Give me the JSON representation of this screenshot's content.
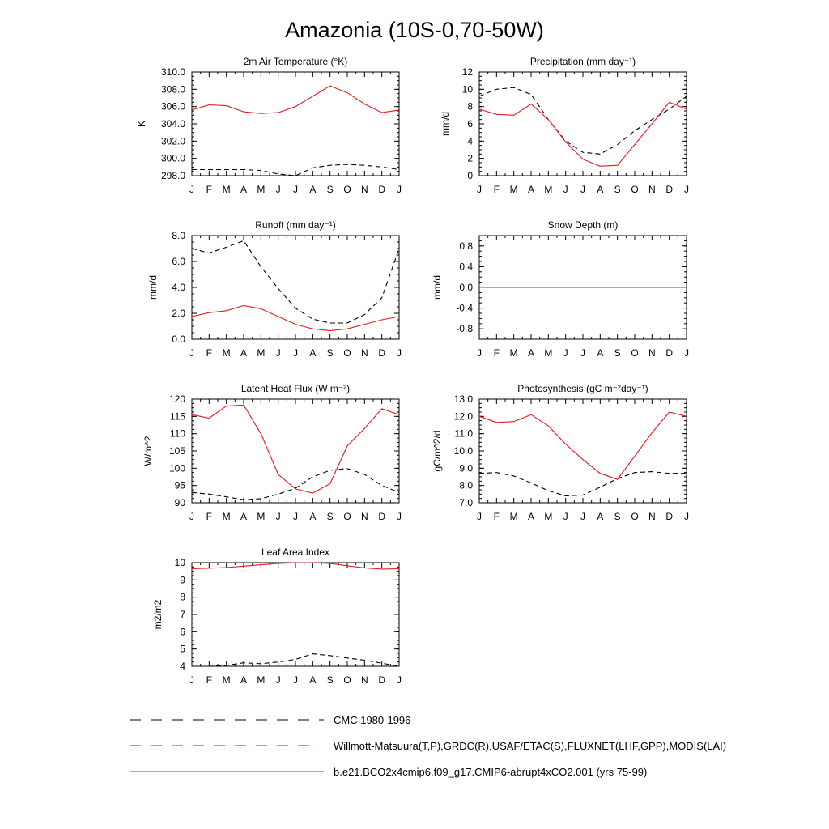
{
  "title": "Amazonia (10S-0,70-50W)",
  "months": [
    "J",
    "F",
    "M",
    "A",
    "M",
    "J",
    "J",
    "A",
    "S",
    "O",
    "N",
    "D",
    "J"
  ],
  "colors": {
    "model": "#e41a1c",
    "obs": "#000000",
    "obs_legend_red": "#b2182b",
    "obs_legend_blue": "#3a3aa8"
  },
  "legend": [
    {
      "label": "CMC 1980-1996",
      "style": "dashed"
    },
    {
      "label": "Willmott-Matsuura(T,P),GRDC(R),USAF/ETAC(S),FLUXNET(LHF,GPP),MODIS(LAI)",
      "style": "dashed-multicolor"
    },
    {
      "label": "b.e21.BCO2x4cmip6.f09_g17.CMIP6-abrupt4xCO2.001 (yrs 75-99)",
      "style": "solid"
    }
  ],
  "chart_data": [
    {
      "type": "line",
      "title": "2m Air Temperature (°K)",
      "ylabel": "K",
      "ylim": [
        298.0,
        310.0
      ],
      "yticks": [
        "298.0",
        "300.0",
        "302.0",
        "304.0",
        "306.0",
        "308.0",
        "310.0"
      ],
      "series": [
        {
          "style": "solid",
          "values": [
            305.6,
            306.2,
            306.1,
            305.4,
            305.2,
            305.3,
            306.0,
            307.2,
            308.4,
            307.6,
            306.3,
            305.3,
            305.6
          ]
        },
        {
          "style": "dashed",
          "values": [
            298.7,
            298.7,
            298.7,
            298.7,
            298.6,
            298.2,
            298.0,
            298.9,
            299.2,
            299.3,
            299.2,
            299.0,
            298.7
          ]
        }
      ]
    },
    {
      "type": "line",
      "title": "Precipitation (mm day⁻¹)",
      "ylabel": "mm/d",
      "ylim": [
        0,
        12
      ],
      "yticks": [
        "0",
        "2",
        "4",
        "6",
        "8",
        "10",
        "12"
      ],
      "series": [
        {
          "style": "solid",
          "values": [
            7.7,
            7.1,
            7.0,
            8.3,
            6.5,
            3.9,
            1.9,
            1.1,
            1.2,
            3.6,
            6.0,
            8.5,
            7.7
          ]
        },
        {
          "style": "dashed",
          "values": [
            9.2,
            10.0,
            10.2,
            9.4,
            6.5,
            4.0,
            2.7,
            2.5,
            3.6,
            5.2,
            6.5,
            7.7,
            9.2
          ]
        }
      ]
    },
    {
      "type": "line",
      "title": "Runoff (mm day⁻¹)",
      "ylabel": "mm/d",
      "ylim": [
        0.0,
        8.0
      ],
      "yticks": [
        "0.0",
        "2.0",
        "4.0",
        "6.0",
        "8.0"
      ],
      "series": [
        {
          "style": "solid",
          "values": [
            1.75,
            2.05,
            2.2,
            2.6,
            2.35,
            1.75,
            1.15,
            0.8,
            0.65,
            0.8,
            1.15,
            1.5,
            1.75
          ]
        },
        {
          "style": "dashed",
          "values": [
            7.0,
            6.65,
            7.1,
            7.6,
            5.6,
            3.9,
            2.4,
            1.55,
            1.25,
            1.25,
            1.9,
            3.2,
            7.0
          ]
        }
      ]
    },
    {
      "type": "line",
      "title": "Snow Depth (m)",
      "ylabel": "mm/d",
      "ylim": [
        -1.0,
        1.0
      ],
      "yticks": [
        "-0.8",
        "-0.4",
        "0.0",
        "0.4",
        "0.8"
      ],
      "series": [
        {
          "style": "solid",
          "values": [
            0,
            0,
            0,
            0,
            0,
            0,
            0,
            0,
            0,
            0,
            0,
            0,
            0
          ]
        },
        {
          "style": "dashed",
          "values": [
            0,
            0,
            0,
            0,
            0,
            0,
            0,
            0,
            0,
            0,
            0,
            0,
            0
          ]
        }
      ]
    },
    {
      "type": "line",
      "title": "Latent Heat Flux (W m⁻²)",
      "ylabel": "W/m^2",
      "ylim": [
        90,
        120
      ],
      "yticks": [
        "90",
        "95",
        "100",
        "105",
        "110",
        "115",
        "120"
      ],
      "series": [
        {
          "style": "solid",
          "values": [
            115.5,
            114.5,
            118.0,
            118.3,
            110.0,
            98.2,
            94.0,
            92.8,
            95.5,
            106.5,
            111.5,
            117.2,
            115.5
          ]
        },
        {
          "style": "dashed",
          "values": [
            93.0,
            92.5,
            91.7,
            90.9,
            91.2,
            92.5,
            94.2,
            97.5,
            99.4,
            99.9,
            98.2,
            95.0,
            93.0
          ]
        }
      ]
    },
    {
      "type": "line",
      "title": "Photosynthesis (gC m⁻²day⁻¹)",
      "ylabel": "gC/m^2/d",
      "ylim": [
        7.0,
        13.0
      ],
      "yticks": [
        "7.0",
        "8.0",
        "9.0",
        "10.0",
        "11.0",
        "12.0",
        "13.0"
      ],
      "series": [
        {
          "style": "solid",
          "values": [
            12.0,
            11.65,
            11.7,
            12.1,
            11.45,
            10.4,
            9.5,
            8.7,
            8.35,
            9.7,
            11.05,
            12.25,
            12.0
          ]
        },
        {
          "style": "dashed",
          "values": [
            8.7,
            8.75,
            8.55,
            8.15,
            7.7,
            7.4,
            7.45,
            7.9,
            8.4,
            8.75,
            8.8,
            8.7,
            8.7
          ]
        }
      ]
    },
    {
      "type": "line",
      "title": "Leaf Area Index",
      "ylabel": "m2/m2",
      "ylim": [
        4,
        10
      ],
      "yticks": [
        "4",
        "5",
        "6",
        "7",
        "8",
        "9",
        "10"
      ],
      "series": [
        {
          "style": "solid",
          "values": [
            9.65,
            9.68,
            9.72,
            9.8,
            9.88,
            9.95,
            10.0,
            10.0,
            9.95,
            9.82,
            9.7,
            9.63,
            9.65
          ]
        },
        {
          "style": "dashed",
          "values": [
            4.0,
            4.0,
            4.05,
            4.2,
            4.15,
            4.25,
            4.4,
            4.72,
            4.62,
            4.48,
            4.35,
            4.18,
            4.0
          ]
        }
      ]
    }
  ]
}
